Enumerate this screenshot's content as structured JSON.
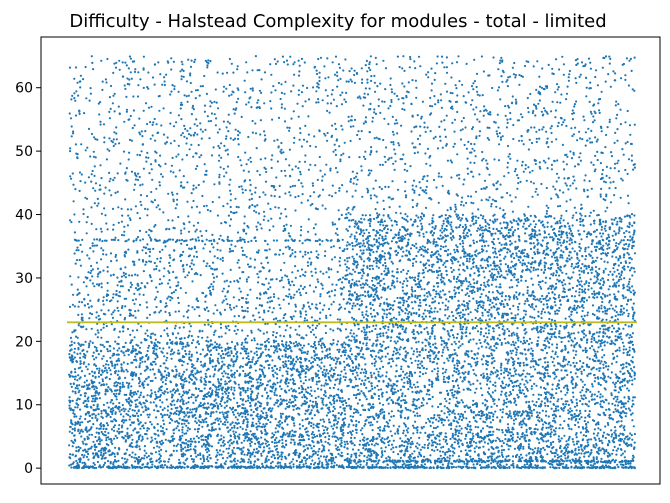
{
  "chart_data": {
    "type": "scatter",
    "title": "Difficulty - Halstead Complexity for modules - total - limited",
    "xlabel": "",
    "ylabel": "",
    "ylim": [
      -2.5,
      68
    ],
    "yticks": [
      0,
      10,
      20,
      30,
      40,
      50,
      60
    ],
    "xticks_visible": false,
    "grid": false,
    "point_color": "#1f77b4",
    "reference_line": {
      "y": 23,
      "color": "#bcbd22"
    },
    "density_profile": [
      {
        "x_range": [
          0.0,
          0.49
        ],
        "value_range": [
          0,
          65
        ],
        "approx_points": 5200,
        "concentration": "heavy below 20, sparse above",
        "baseline_rows": [
          0,
          36
        ]
      },
      {
        "x_range": [
          0.49,
          1.0
        ],
        "value_range": [
          0,
          65
        ],
        "approx_points": 6800,
        "concentration": "fairly uniform, denser 5-40",
        "baseline_rows": [
          0,
          1
        ]
      }
    ]
  }
}
